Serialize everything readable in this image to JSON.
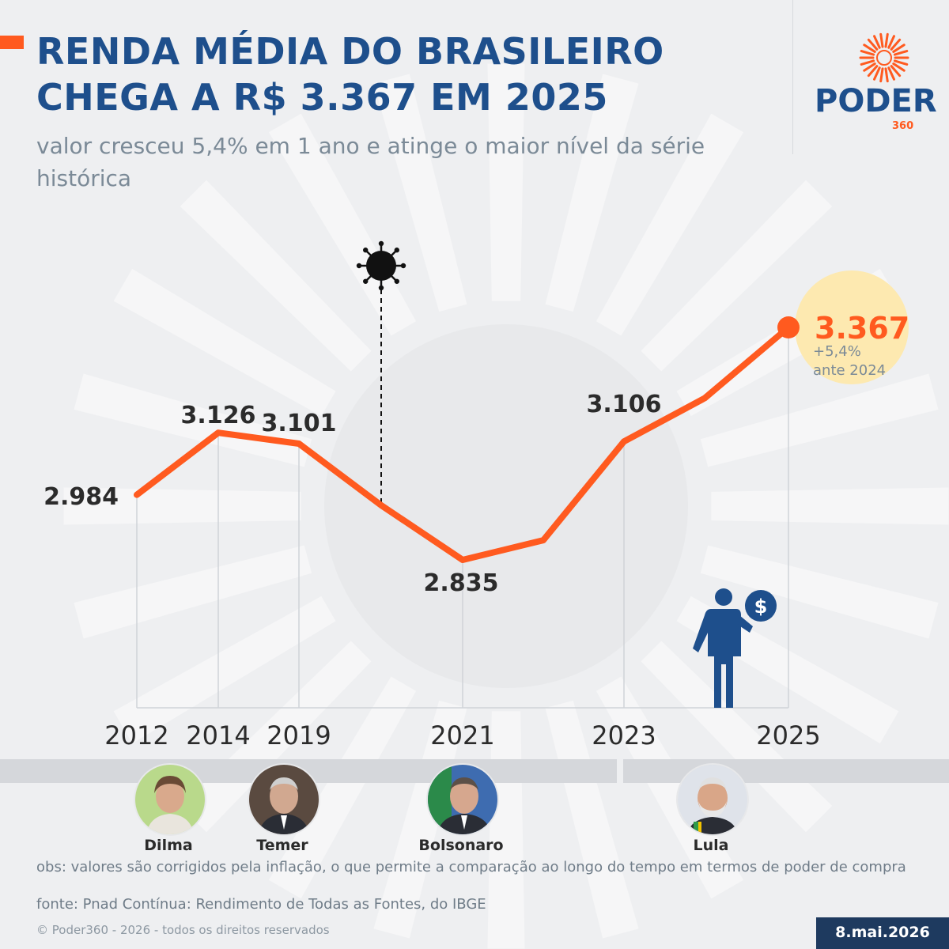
{
  "header": {
    "title": "RENDA MÉDIA DO BRASILEIRO CHEGA A R$ 3.367 EM 2025",
    "subtitle": "valor cresceu 5,4% em 1 ano e atinge o maior nível da série histórica"
  },
  "logo": {
    "name": "PODER",
    "suffix": "360"
  },
  "chart_data": {
    "type": "line",
    "x": [
      "2012",
      "2014",
      "2019",
      "2020",
      "2021",
      "2022",
      "2023",
      "2024",
      "2025"
    ],
    "values": [
      2984,
      3126,
      3101,
      2960,
      2835,
      2880,
      3106,
      3205,
      3367
    ],
    "labeled_points": [
      {
        "x": "2012",
        "label": "2.984"
      },
      {
        "x": "2014",
        "label": "3.126"
      },
      {
        "x": "2019",
        "label": "3.101"
      },
      {
        "x": "2021",
        "label": "2.835"
      },
      {
        "x": "2023",
        "label": "3.106"
      }
    ],
    "tick_labels": [
      "2012",
      "2014",
      "2019",
      "2021",
      "2023",
      "2025"
    ],
    "highlight": {
      "x": "2025",
      "value": "3.367",
      "change": "+5,4%",
      "note": "ante 2024"
    },
    "annotation": {
      "x": "2020",
      "icon": "virus-icon"
    },
    "line_color": "#ff5a1f",
    "grid": "vertical-lines-at-ticks",
    "legend": "none"
  },
  "presidents": [
    {
      "name": "Dilma"
    },
    {
      "name": "Temer"
    },
    {
      "name": "Bolsonaro"
    },
    {
      "name": "Lula"
    }
  ],
  "footer": {
    "obs": "obs: valores são corrigidos pela inflação, o que permite a comparação ao longo do tempo em termos de poder de compra",
    "fonte": "fonte: Pnad Contínua: Rendimento de Todas as Fontes, do IBGE",
    "copyright": "© Poder360 - 2026 - todos os direitos reservados",
    "date": "8.mai.2026"
  },
  "colors": {
    "accent": "#ff5a1f",
    "brand_blue": "#1e4f8c",
    "dark_navy": "#1e3a5f",
    "highlight_bg": "#fde9b0"
  }
}
